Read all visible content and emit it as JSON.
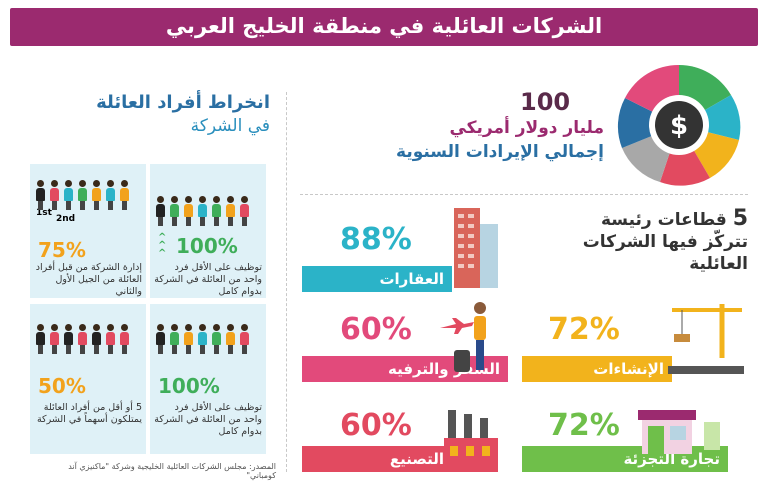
{
  "header": {
    "title": "الشركات العائلية في منطقة الخليج العربي"
  },
  "family": {
    "title": "انخراط أفراد العائلة",
    "subtitle": "في الشركة",
    "panels": [
      {
        "pct": "100%",
        "desc": "توظيف على الأقل فرد واحد من العائلة في الشركة بدوام كامل"
      },
      {
        "pct": "75%",
        "desc": "إدارة الشركة من قبل أفراد العائلة من الجيل الأول والثاني",
        "gen1": "1st",
        "gen2": "2nd"
      },
      {
        "pct": "100%",
        "desc": "توظيف على الأقل فرد واحد من العائلة في الشركة بدوام كامل"
      },
      {
        "pct": "50%",
        "desc": "5 أو أقل من أفراد العائلة يمتلكون أسهماً في الشركة"
      }
    ],
    "source": "المصدر: مجلس الشركات العائلية الخليجية وشركة \"ماكنيزي آند كومباني\""
  },
  "revenue": {
    "amount": "100",
    "unit": "مليار دولار أمريكي",
    "label": "إجمالي الإيرادات السنوية",
    "icon": "dollar-icon"
  },
  "sectors": {
    "title_number": "5",
    "title_line1": "قطاعات رئيسة",
    "title_line2": "تتركّز فيها الشركات",
    "title_line3": "العائلية",
    "items": [
      {
        "pct": "88%",
        "label": "العقارات",
        "color": "#2bb3c8",
        "icon": "building-icon"
      },
      {
        "pct": "72%",
        "label": "الإنشاءات",
        "color": "#f2b31c",
        "icon": "crane-icon"
      },
      {
        "pct": "60%",
        "label": "السفر والترفيه",
        "color": "#e24a7b",
        "icon": "traveler-icon"
      },
      {
        "pct": "72%",
        "label": "تجارة التجزئة",
        "color": "#6fbf4a",
        "icon": "shop-icon"
      },
      {
        "pct": "60%",
        "label": "التصنيع",
        "color": "#e24a60",
        "icon": "factory-icon"
      }
    ]
  },
  "colors": {
    "title_bar": "#9b2a6f",
    "panel_bg": "#dff1f7",
    "green": "#3fae5a",
    "orange": "#f2a21c",
    "blue": "#2a6fa3"
  }
}
